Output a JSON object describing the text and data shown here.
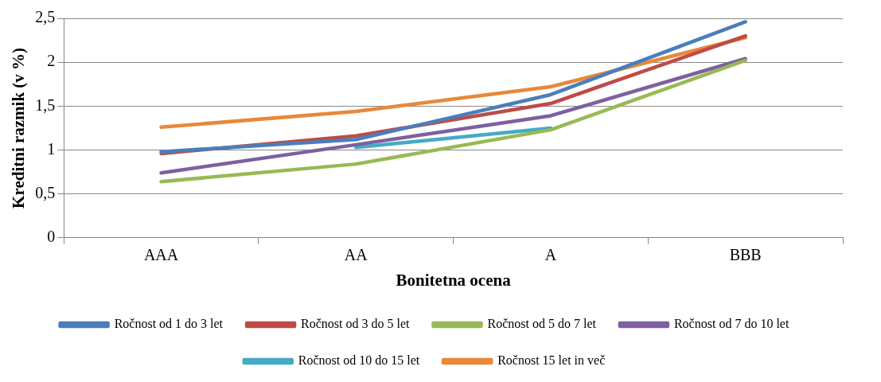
{
  "chart_data": {
    "type": "line",
    "xlabel": "Bonitetna ocena",
    "ylabel": "Kreditni razmik (v %)",
    "categories": [
      "AAA",
      "AA",
      "A",
      "BBB"
    ],
    "series": [
      {
        "name": "Ročnost od 1 do 3 let",
        "color": "#4a7ebb",
        "values": [
          0.98,
          1.12,
          1.63,
          2.46
        ]
      },
      {
        "name": "Ročnost od 3 do 5 let",
        "color": "#be4b48",
        "values": [
          0.96,
          1.16,
          1.53,
          2.3
        ]
      },
      {
        "name": "Ročnost od 5 do 7 let",
        "color": "#98b954",
        "values": [
          0.64,
          0.84,
          1.23,
          2.02
        ]
      },
      {
        "name": "Ročnost od 7 do 10 let",
        "color": "#7d60a0",
        "values": [
          0.74,
          1.06,
          1.39,
          2.04
        ]
      },
      {
        "name": "Ročnost od 10 do 15 let",
        "color": "#46aac5",
        "values": [
          null,
          1.03,
          1.25,
          null
        ]
      },
      {
        "name": "Ročnost 15 let in več",
        "color": "#e8883a",
        "values": [
          1.26,
          1.44,
          1.72,
          2.28
        ]
      }
    ],
    "ylim": [
      0,
      2.5
    ],
    "yticks": [
      0,
      {
        "value": 0.5,
        "label": "0,5"
      },
      1,
      {
        "value": 1.5,
        "label": "1,5"
      },
      2,
      {
        "value": 2.5,
        "label": "2,5"
      }
    ],
    "grid": "y",
    "legend": "bottom",
    "marker": "none",
    "line_style": "solid"
  }
}
